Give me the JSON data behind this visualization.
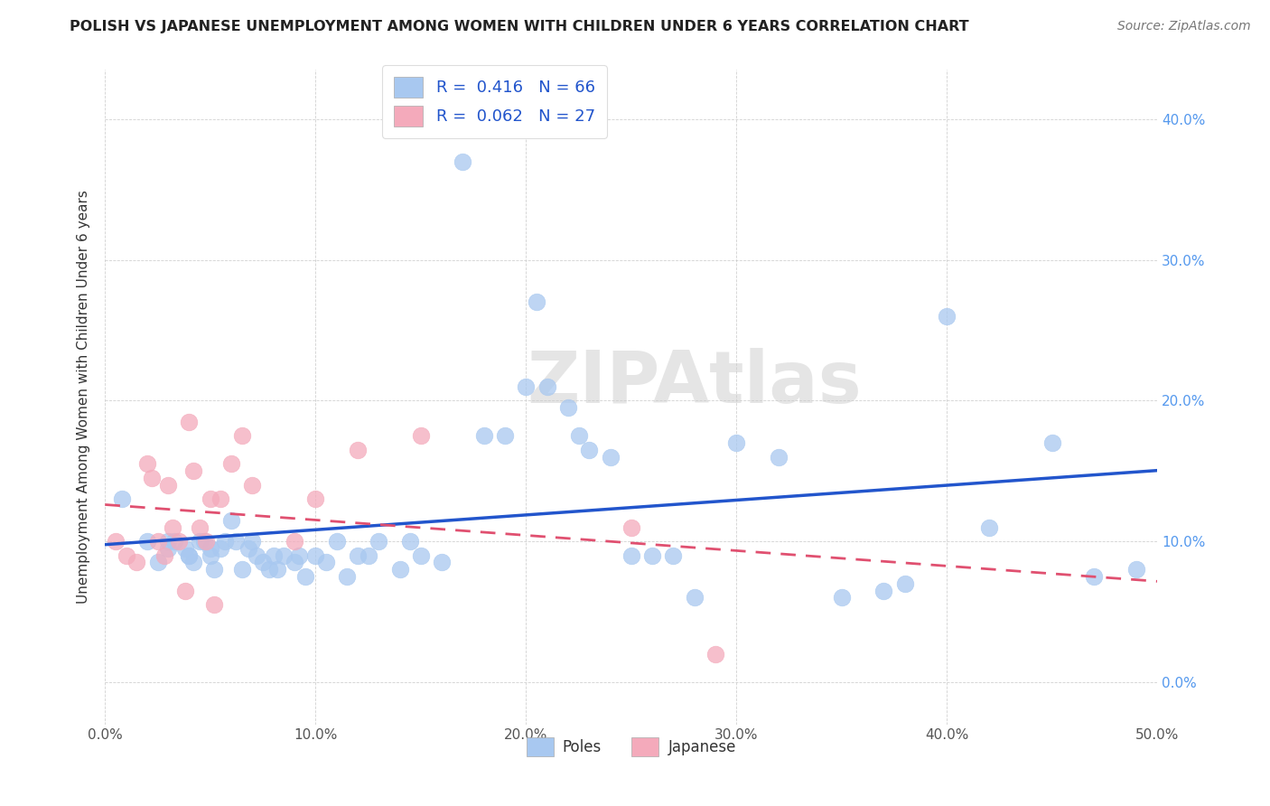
{
  "title": "POLISH VS JAPANESE UNEMPLOYMENT AMONG WOMEN WITH CHILDREN UNDER 6 YEARS CORRELATION CHART",
  "source": "Source: ZipAtlas.com",
  "ylabel": "Unemployment Among Women with Children Under 6 years",
  "xlim": [
    0.0,
    0.5
  ],
  "ylim": [
    -0.03,
    0.435
  ],
  "poles_R": 0.416,
  "poles_N": 66,
  "japanese_R": 0.062,
  "japanese_N": 27,
  "poles_color": "#A8C8F0",
  "japanese_color": "#F4AABB",
  "poles_line_color": "#2255CC",
  "japanese_line_color": "#E05070",
  "background_color": "#FFFFFF",
  "poles_x": [
    0.008,
    0.02,
    0.025,
    0.03,
    0.03,
    0.033,
    0.038,
    0.04,
    0.04,
    0.042,
    0.045,
    0.047,
    0.05,
    0.05,
    0.052,
    0.055,
    0.057,
    0.06,
    0.062,
    0.065,
    0.068,
    0.07,
    0.072,
    0.075,
    0.078,
    0.08,
    0.082,
    0.085,
    0.09,
    0.092,
    0.095,
    0.1,
    0.105,
    0.11,
    0.115,
    0.12,
    0.125,
    0.13,
    0.14,
    0.145,
    0.15,
    0.16,
    0.17,
    0.18,
    0.19,
    0.2,
    0.205,
    0.21,
    0.22,
    0.225,
    0.23,
    0.24,
    0.25,
    0.26,
    0.27,
    0.28,
    0.3,
    0.32,
    0.35,
    0.37,
    0.38,
    0.4,
    0.42,
    0.45,
    0.47,
    0.49
  ],
  "poles_y": [
    0.13,
    0.1,
    0.085,
    0.095,
    0.1,
    0.1,
    0.095,
    0.09,
    0.09,
    0.085,
    0.1,
    0.1,
    0.09,
    0.095,
    0.08,
    0.095,
    0.1,
    0.115,
    0.1,
    0.08,
    0.095,
    0.1,
    0.09,
    0.085,
    0.08,
    0.09,
    0.08,
    0.09,
    0.085,
    0.09,
    0.075,
    0.09,
    0.085,
    0.1,
    0.075,
    0.09,
    0.09,
    0.1,
    0.08,
    0.1,
    0.09,
    0.085,
    0.37,
    0.175,
    0.175,
    0.21,
    0.27,
    0.21,
    0.195,
    0.175,
    0.165,
    0.16,
    0.09,
    0.09,
    0.09,
    0.06,
    0.17,
    0.16,
    0.06,
    0.065,
    0.07,
    0.26,
    0.11,
    0.17,
    0.075,
    0.08
  ],
  "japanese_x": [
    0.005,
    0.01,
    0.015,
    0.02,
    0.022,
    0.025,
    0.028,
    0.03,
    0.032,
    0.035,
    0.038,
    0.04,
    0.042,
    0.045,
    0.048,
    0.05,
    0.052,
    0.055,
    0.06,
    0.065,
    0.07,
    0.09,
    0.1,
    0.12,
    0.15,
    0.25,
    0.29
  ],
  "japanese_y": [
    0.1,
    0.09,
    0.085,
    0.155,
    0.145,
    0.1,
    0.09,
    0.14,
    0.11,
    0.1,
    0.065,
    0.185,
    0.15,
    0.11,
    0.1,
    0.13,
    0.055,
    0.13,
    0.155,
    0.175,
    0.14,
    0.1,
    0.13,
    0.165,
    0.175,
    0.11,
    0.02
  ]
}
